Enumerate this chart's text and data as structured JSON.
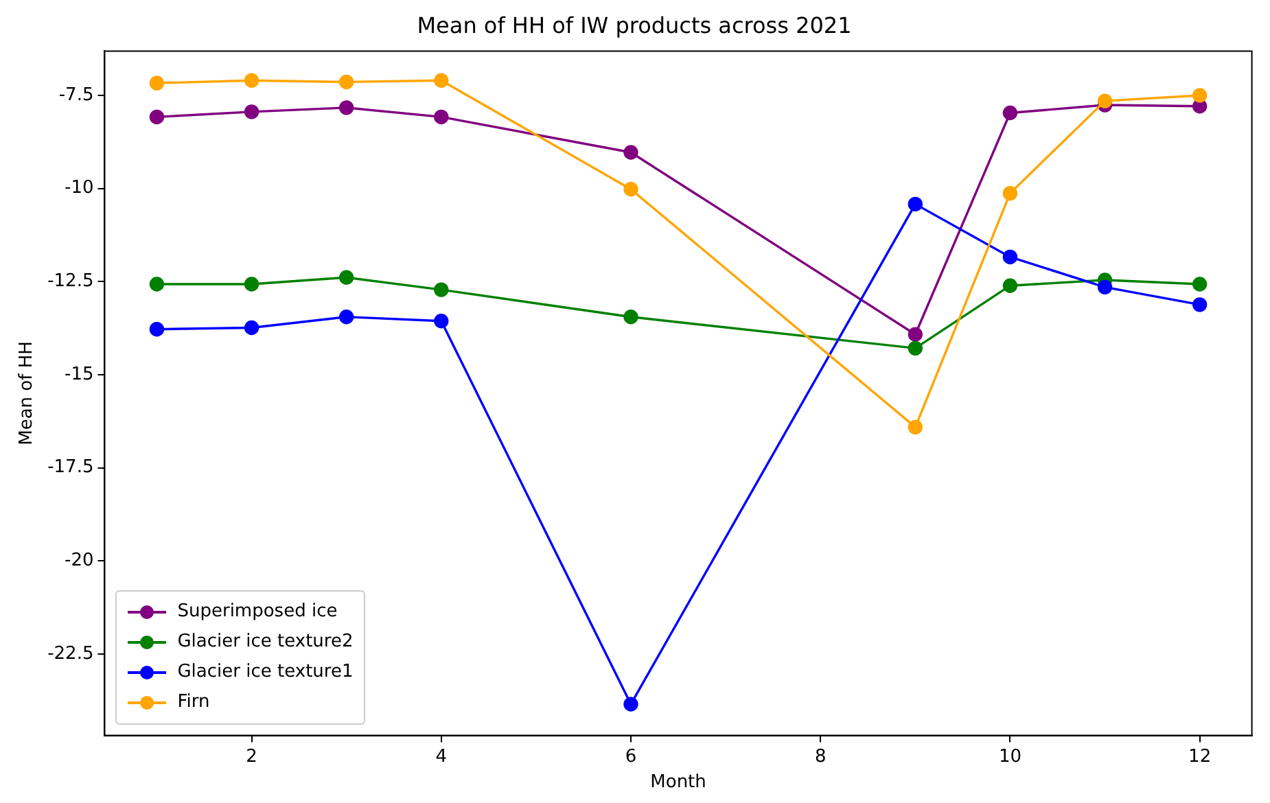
{
  "chart_data": {
    "type": "line",
    "title": "Mean of HH of IW products across 2021",
    "xlabel": "Month",
    "ylabel": "Mean of HH",
    "x": [
      1,
      2,
      3,
      4,
      6,
      9,
      10,
      11,
      12
    ],
    "series": [
      {
        "name": "Superimposed ice",
        "color": "#800080",
        "values": [
          -8.08,
          -7.94,
          -7.83,
          -8.08,
          -9.03,
          -13.92,
          -7.97,
          -7.76,
          -7.79
        ]
      },
      {
        "name": "Glacier ice texture2",
        "color": "#008000",
        "values": [
          -12.57,
          -12.57,
          -12.39,
          -12.72,
          -13.45,
          -14.29,
          -12.61,
          -12.46,
          -12.57
        ]
      },
      {
        "name": "Glacier ice texture1",
        "color": "#0000ff",
        "values": [
          -13.78,
          -13.74,
          -13.45,
          -13.56,
          -23.85,
          -10.42,
          -11.84,
          -12.65,
          -13.12
        ]
      },
      {
        "name": "Firn",
        "color": "#ffa500",
        "values": [
          -7.17,
          -7.1,
          -7.14,
          -7.1,
          -10.02,
          -16.41,
          -10.13,
          -7.65,
          -7.5
        ]
      }
    ],
    "xlim": [
      0.45,
      12.55
    ],
    "xticks": [
      2,
      4,
      6,
      8,
      10,
      12
    ],
    "ylim": [
      -24.69,
      -6.31
    ],
    "yticks": [
      -22.5,
      -20,
      -17.5,
      -15,
      -12.5,
      -10,
      -7.5
    ],
    "grid": false,
    "legend": "bottom left",
    "marker": "circle",
    "line_style": "solid"
  }
}
